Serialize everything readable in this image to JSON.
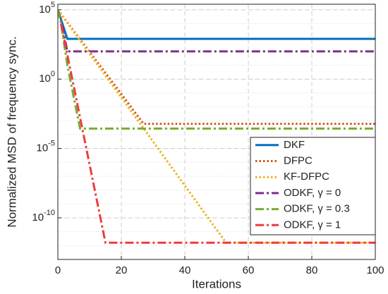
{
  "chart_data": {
    "type": "line",
    "xlabel": "Iterations",
    "ylabel": "Normalized MSD of frequency sync.",
    "x": [
      0,
      1,
      3,
      5,
      7,
      10,
      15,
      20,
      27,
      40,
      53,
      60,
      80,
      100
    ],
    "xlim": [
      0,
      100
    ],
    "xticks": [
      0,
      20,
      40,
      60,
      80,
      100
    ],
    "ylim": [
      1e-13,
      250000
    ],
    "yticks": [
      {
        "value": 1e-10,
        "label": "10^-10"
      },
      {
        "value": 1e-05,
        "label": "10^-5"
      },
      {
        "value": 1,
        "label": "10^0"
      },
      {
        "value": 100000,
        "label": "10^5"
      }
    ],
    "yscale": "log",
    "grid": true,
    "legend": "lower right",
    "series": [
      {
        "name": "DKF",
        "color": "#0072BD",
        "dash": "solid",
        "values": [
          100000,
          20000,
          800,
          800,
          800,
          800,
          800,
          800,
          800,
          800,
          800,
          800,
          800,
          800
        ]
      },
      {
        "name": "DFPC",
        "color": "#D95319",
        "dash": "dot",
        "values": [
          100000,
          50000,
          12000,
          3000,
          740,
          91,
          2.8,
          0.085,
          0.0006,
          0.0006,
          0.0006,
          0.0006,
          0.0006,
          0.0006
        ]
      },
      {
        "name": "KF-DFPC",
        "color": "#EDB120",
        "dash": "dot",
        "values": [
          100000,
          48000,
          11000,
          2600,
          600,
          68,
          1.8,
          0.046,
          0.00028,
          2.1e-08,
          1.6e-12,
          1.6e-12,
          1.6e-12,
          1.6e-12
        ]
      },
      {
        "name": "ODKF, γ = 0",
        "color": "#7E2F8E",
        "dash": "dashdot",
        "values": [
          100000,
          20000,
          100,
          100,
          100,
          100,
          100,
          100,
          100,
          100,
          100,
          100,
          100,
          100
        ]
      },
      {
        "name": "ODKF, γ = 0.3",
        "color": "#77AC30",
        "dash": "dashdot",
        "values": [
          100000,
          10000,
          10,
          0.05,
          0.00027,
          0.00027,
          0.00027,
          0.00027,
          0.00027,
          0.00027,
          0.00027,
          0.00027,
          0.00027,
          0.00027
        ]
      },
      {
        "name": "ODKF, γ = 1",
        "color": "#EE3B3B",
        "dash": "dashdot",
        "values": [
          null,
          10000,
          55,
          0.31,
          0.0017,
          6.9e-07,
          1.6e-12,
          1.6e-12,
          1.6e-12,
          1.6e-12,
          1.6e-12,
          1.6e-12,
          1.6e-12,
          1.6e-12
        ]
      }
    ]
  }
}
